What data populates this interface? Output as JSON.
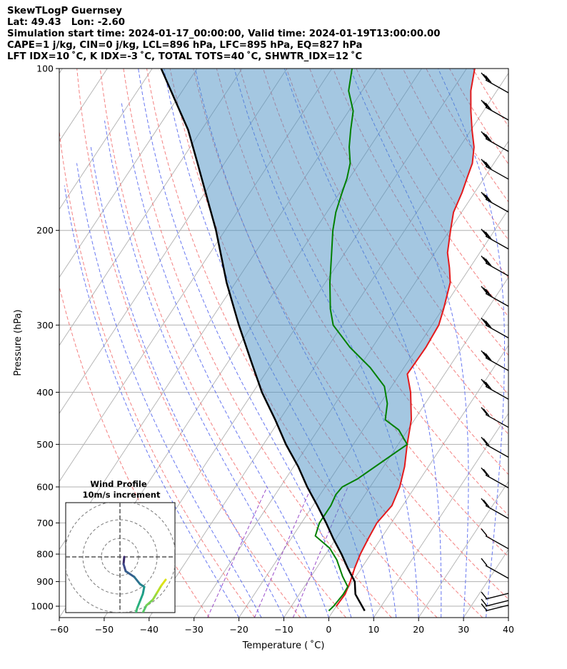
{
  "header": {
    "line1": "SkewTLogP Guernsey",
    "line2": "Lat: 49.43   Lon: -2.60",
    "line3": "Simulation start time: 2024-01-17_00:00:00, Valid time: 2024-01-19T13:00:00.00",
    "line4": "CAPE=1 j/kg, CIN=0 j/kg, LCL=896 hPa, LFC=895 hPa, EQ=827 hPa",
    "line5": "LFT IDX=10 ˚C, K IDX=-3 ˚C, TOTAL TOTS=40 ˚C, SHWTR_IDX=12 ˚C"
  },
  "chart_data": {
    "type": "line",
    "subtype": "skew-t log-p",
    "xlabel": "Temperature ( ˚C)",
    "ylabel": "Pressure (hPa)",
    "xlim": [
      -60,
      40
    ],
    "ylim": [
      1050,
      100
    ],
    "y_scale": "log",
    "grid": true,
    "x_ticks": [
      -60,
      -50,
      -40,
      -30,
      -20,
      -10,
      0,
      10,
      20,
      30,
      40
    ],
    "y_ticks": [
      100,
      200,
      300,
      400,
      500,
      600,
      700,
      800,
      900,
      1000
    ],
    "colors": {
      "temperature": "#e41a1c",
      "dewpoint": "#008000",
      "parcel": "#000000",
      "cape_fill": "#4a90c4",
      "dry_adiabats": "#f26b6b",
      "moist_adiabats": "#4d60ee",
      "mixing_ratio": "#9b4dca",
      "isotherms": "#b0b0b0"
    },
    "series": [
      {
        "name": "temperature",
        "points": [
          [
            1000,
            0
          ],
          [
            950,
            0.2
          ],
          [
            900,
            -0.5
          ],
          [
            850,
            -1.5
          ],
          [
            800,
            -2.3
          ],
          [
            750,
            -2.8
          ],
          [
            700,
            -3.2
          ],
          [
            650,
            -2.4
          ],
          [
            600,
            -3.4
          ],
          [
            550,
            -5.3
          ],
          [
            500,
            -8
          ],
          [
            450,
            -10.7
          ],
          [
            400,
            -14.9
          ],
          [
            370,
            -18.3
          ],
          [
            350,
            -18.2
          ],
          [
            330,
            -18.1
          ],
          [
            300,
            -18.5
          ],
          [
            280,
            -19.8
          ],
          [
            250,
            -22.2
          ],
          [
            235,
            -24.5
          ],
          [
            220,
            -27.2
          ],
          [
            200,
            -29.8
          ],
          [
            185,
            -31.8
          ],
          [
            170,
            -32.8
          ],
          [
            160,
            -33.8
          ],
          [
            150,
            -34.8
          ],
          [
            140,
            -36.8
          ],
          [
            130,
            -39.8
          ],
          [
            120,
            -42.8
          ],
          [
            110,
            -45.8
          ],
          [
            100,
            -48.2
          ]
        ]
      },
      {
        "name": "dewpoint",
        "points": [
          [
            1020,
            -1
          ],
          [
            1000,
            -0.6
          ],
          [
            950,
            -0.2
          ],
          [
            920,
            -0.3
          ],
          [
            880,
            -3
          ],
          [
            820,
            -6.7
          ],
          [
            780,
            -10
          ],
          [
            740,
            -15
          ],
          [
            700,
            -16
          ],
          [
            650,
            -16
          ],
          [
            620,
            -16.5
          ],
          [
            600,
            -16.2
          ],
          [
            580,
            -14
          ],
          [
            500,
            -8
          ],
          [
            470,
            -12
          ],
          [
            450,
            -16.5
          ],
          [
            420,
            -18.4
          ],
          [
            390,
            -21.6
          ],
          [
            360,
            -27.5
          ],
          [
            330,
            -35
          ],
          [
            300,
            -42
          ],
          [
            280,
            -45
          ],
          [
            250,
            -49
          ],
          [
            220,
            -53
          ],
          [
            200,
            -56
          ],
          [
            185,
            -58
          ],
          [
            170,
            -59.5
          ],
          [
            160,
            -60.5
          ],
          [
            150,
            -62
          ],
          [
            140,
            -64.6
          ],
          [
            130,
            -66.8
          ],
          [
            120,
            -69
          ],
          [
            110,
            -73
          ],
          [
            100,
            -75.5
          ]
        ]
      },
      {
        "name": "parcel",
        "points": [
          [
            1020,
            7
          ],
          [
            950,
            2.5
          ],
          [
            900,
            0.5
          ],
          [
            850,
            -3
          ],
          [
            800,
            -6.5
          ],
          [
            750,
            -10.5
          ],
          [
            700,
            -14.5
          ],
          [
            650,
            -19
          ],
          [
            600,
            -24
          ],
          [
            550,
            -29
          ],
          [
            500,
            -35
          ],
          [
            450,
            -41
          ],
          [
            400,
            -48
          ],
          [
            350,
            -55
          ],
          [
            300,
            -63
          ],
          [
            250,
            -72
          ],
          [
            200,
            -82
          ],
          [
            150,
            -96
          ],
          [
            130,
            -103
          ],
          [
            100,
            -118
          ]
        ]
      }
    ],
    "wind_barbs_pressures": [
      105,
      118,
      135,
      152,
      175,
      205,
      230,
      262,
      300,
      345,
      390,
      440,
      500,
      570,
      650,
      740,
      840,
      970,
      1000,
      1020
    ],
    "hodograph": {
      "title": "Wind Profile",
      "subtitle": "10m/s increment",
      "rings": [
        10,
        20,
        30
      ]
    }
  }
}
